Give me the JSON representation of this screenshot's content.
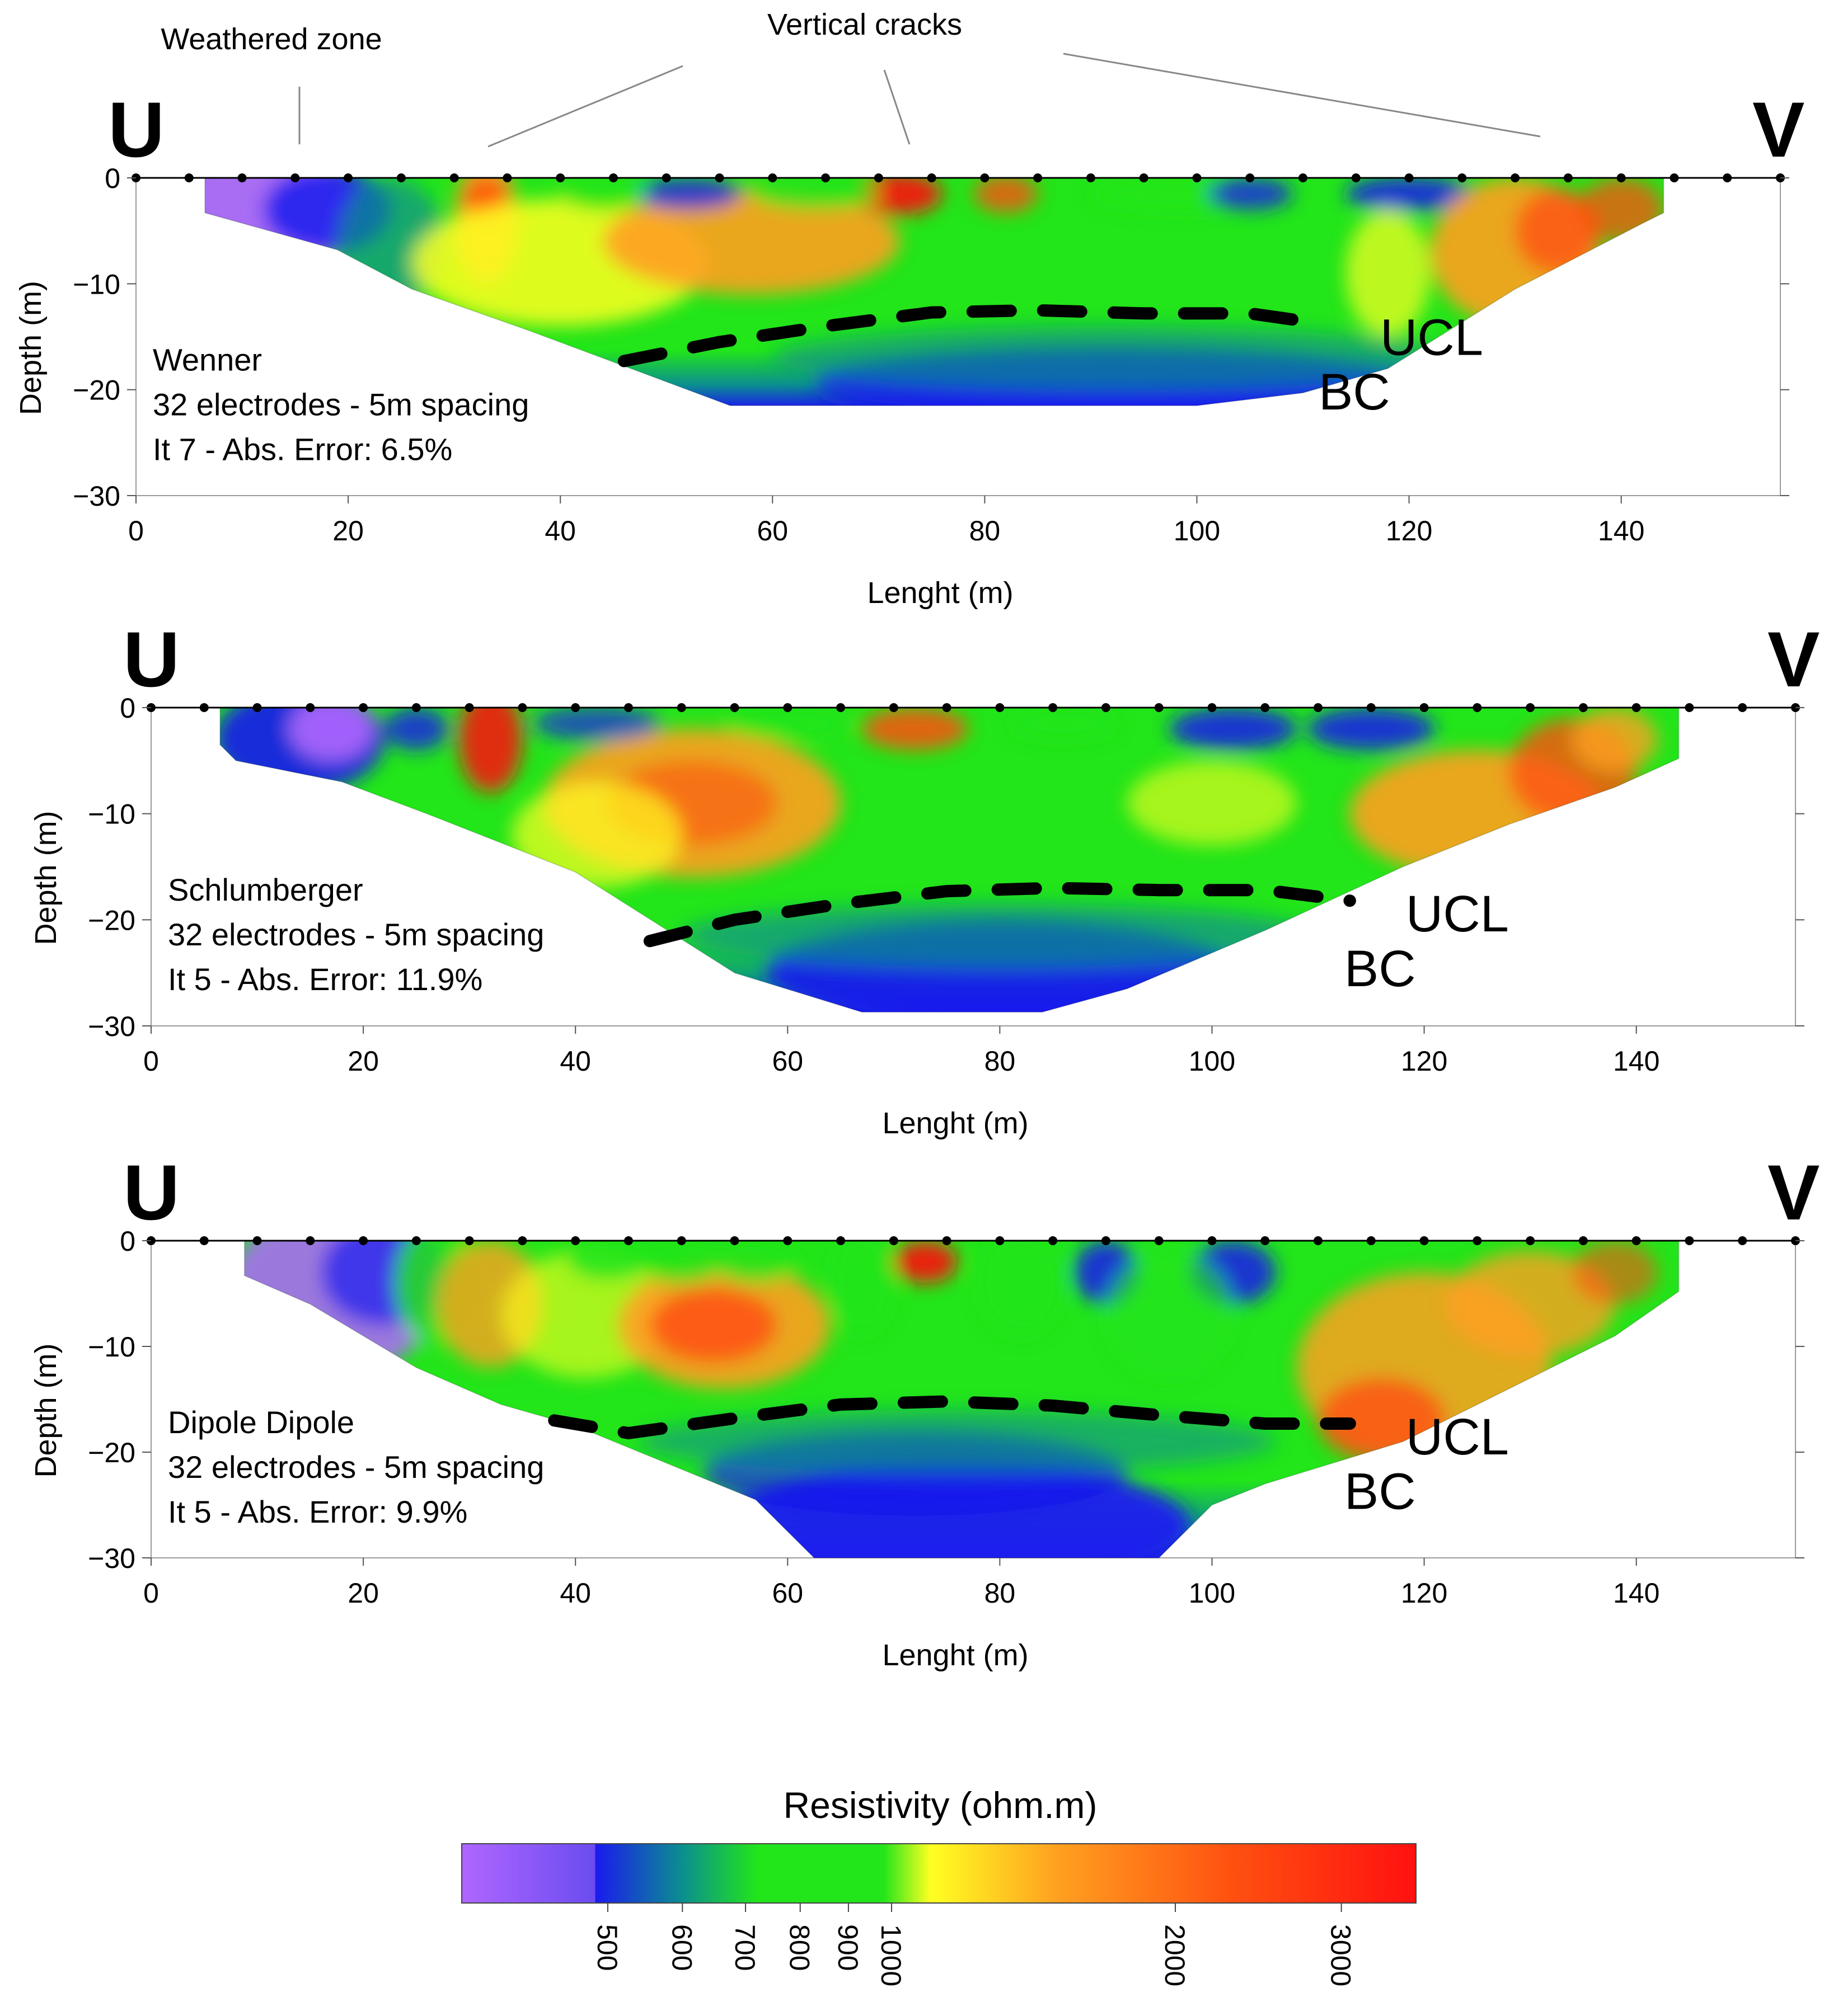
{
  "annotations": {
    "weathered_zone": "Weathered zone",
    "vertical_cracks": "Vertical cracks"
  },
  "colors": {
    "violet": "#b066ff",
    "blue": "#1a1aee",
    "teal": "#0b8f8f",
    "green": "#22e51a",
    "yellow": "#ffff22",
    "orange": "#ffa020",
    "red_orange": "#ff5010",
    "red": "#ff1010"
  },
  "chart_data": [
    {
      "type": "heatmap",
      "method": "Wenner",
      "info": [
        "Wenner",
        "32 electrodes - 5m spacing",
        "It 7 - Abs. Error: 6.5%"
      ],
      "left_label": "U",
      "right_label": "V",
      "xlabel": "Lenght (m)",
      "ylabel": "Depth (m)",
      "xlim": [
        0,
        155
      ],
      "ylim": [
        -30,
        0
      ],
      "xticks": [
        0,
        20,
        40,
        60,
        80,
        100,
        120,
        140
      ],
      "yticks": [
        0,
        -10,
        -20,
        -30
      ],
      "electrode_spacing_m": 5,
      "electrode_count": 32,
      "section_bottom_depth_m": -21.5,
      "ucl_boundary": {
        "x": [
          46,
          55,
          65,
          75,
          85,
          95,
          105,
          112
        ],
        "depth": [
          -17.3,
          -15.5,
          -14,
          -12.7,
          -12.5,
          -12.8,
          -12.8,
          -13.8
        ]
      },
      "zone_labels": {
        "ucl": "UCL",
        "bc": "BC"
      }
    },
    {
      "type": "heatmap",
      "method": "Schlumberger",
      "info": [
        "Schlumberger",
        "32 electrodes - 5m spacing",
        "It 5 - Abs. Error: 11.9%"
      ],
      "left_label": "U",
      "right_label": "V",
      "xlabel": "Lenght (m)",
      "ylabel": "Depth (m)",
      "xlim": [
        0,
        155
      ],
      "ylim": [
        -30,
        0
      ],
      "xticks": [
        0,
        20,
        40,
        60,
        80,
        100,
        120,
        140
      ],
      "yticks": [
        0,
        -10,
        -20,
        -30
      ],
      "electrode_spacing_m": 5,
      "electrode_count": 32,
      "section_bottom_depth_m": -28.7,
      "ucl_boundary": {
        "x": [
          47,
          55,
          65,
          75,
          85,
          95,
          105,
          113
        ],
        "depth": [
          -22,
          -20,
          -18.5,
          -17.3,
          -17,
          -17.2,
          -17.2,
          -18.2
        ]
      },
      "zone_labels": {
        "ucl": "UCL",
        "bc": "BC"
      }
    },
    {
      "type": "heatmap",
      "method": "Dipole Dipole",
      "info": [
        "Dipole Dipole",
        "32 electrodes - 5m spacing",
        "It 5 - Abs. Error: 9.9%"
      ],
      "left_label": "U",
      "right_label": "V",
      "xlabel": "Lenght (m)",
      "ylabel": "Depth (m)",
      "xlim": [
        0,
        155
      ],
      "ylim": [
        -30,
        0
      ],
      "xticks": [
        0,
        20,
        40,
        60,
        80,
        100,
        120,
        140
      ],
      "yticks": [
        0,
        -10,
        -20,
        -30
      ],
      "electrode_spacing_m": 5,
      "electrode_count": 32,
      "section_bottom_depth_m": -30,
      "ucl_boundary": {
        "x": [
          38,
          45,
          55,
          65,
          75,
          85,
          95,
          105,
          113
        ],
        "depth": [
          -17,
          -18.2,
          -16.8,
          -15.5,
          -15.2,
          -15.6,
          -16.5,
          -17.3,
          -17.3
        ]
      },
      "zone_labels": {
        "ucl": "UCL",
        "bc": "BC"
      }
    }
  ],
  "colorbar": {
    "title": "Resistivity (ohm.m)",
    "scale": "log",
    "range": [
      350,
      3600
    ],
    "ticks": [
      500,
      600,
      700,
      800,
      900,
      1000,
      2000,
      3000
    ],
    "tick_labels": [
      "500",
      "600",
      "700",
      "800",
      "900",
      "1000",
      "2000",
      "3000"
    ]
  }
}
